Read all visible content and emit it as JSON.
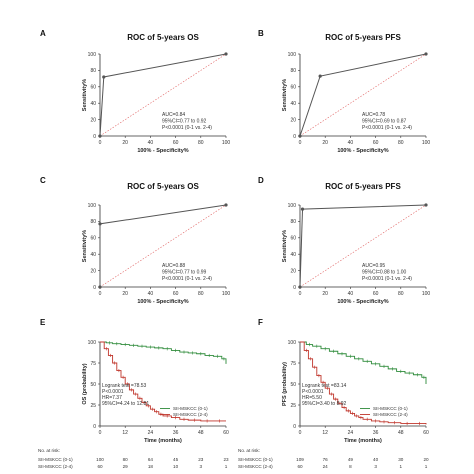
{
  "colors": {
    "roc_line": "#555555",
    "diagonal": "#e06060",
    "km_low": "#2e8b3a",
    "km_high": "#c0352b",
    "axis": "#333333"
  },
  "chart_data": [
    {
      "panel": "A",
      "type": "line",
      "title": "ROC of 5-years OS",
      "xlabel": "100% - Specificity%",
      "ylabel": "Sensitivity%",
      "xlim": [
        0,
        100
      ],
      "ylim": [
        0,
        100
      ],
      "xticks": [
        "0",
        "20",
        "40",
        "60",
        "80",
        "100"
      ],
      "yticks": [
        "0",
        "20",
        "40",
        "60",
        "80",
        "100"
      ],
      "x": [
        0,
        3,
        100
      ],
      "y": [
        0,
        72,
        100
      ],
      "annotations": [
        "AUC=0.84",
        "95%CI=0.77 to 0.92",
        "P<0.0001 (0-1 vs. 2-4)"
      ]
    },
    {
      "panel": "B",
      "type": "line",
      "title": "ROC of 5-years PFS",
      "xlabel": "100% - Specificity%",
      "ylabel": "Sensitivity%",
      "xlim": [
        0,
        100
      ],
      "ylim": [
        0,
        100
      ],
      "xticks": [
        "0",
        "20",
        "40",
        "60",
        "80",
        "100"
      ],
      "yticks": [
        "0",
        "20",
        "40",
        "60",
        "80",
        "100"
      ],
      "x": [
        0,
        16,
        100
      ],
      "y": [
        0,
        73,
        100
      ],
      "annotations": [
        "AUC=0.78",
        "95%CI=0.69 to 0.87",
        "P<0.0001 (0-1 vs. 2-4)"
      ]
    },
    {
      "panel": "C",
      "type": "line",
      "title": "ROC of 5-years OS",
      "xlabel": "100% - Specificity%",
      "ylabel": "Sensitivity%",
      "xlim": [
        0,
        100
      ],
      "ylim": [
        0,
        100
      ],
      "xticks": [
        "0",
        "20",
        "40",
        "60",
        "80",
        "100"
      ],
      "yticks": [
        "0",
        "20",
        "40",
        "60",
        "80",
        "100"
      ],
      "x": [
        0,
        0,
        100
      ],
      "y": [
        0,
        77,
        100
      ],
      "annotations": [
        "AUC=0.88",
        "95%CI=0.77 to 0.99",
        "P<0.0001 (0-1 vs. 2-4)"
      ]
    },
    {
      "panel": "D",
      "type": "line",
      "title": "ROC of 5-years PFS",
      "xlabel": "100% - Specificity%",
      "ylabel": "Sensitivity%",
      "xlim": [
        0,
        100
      ],
      "ylim": [
        0,
        100
      ],
      "xticks": [
        "0",
        "20",
        "40",
        "60",
        "80",
        "100"
      ],
      "yticks": [
        "0",
        "20",
        "40",
        "60",
        "80",
        "100"
      ],
      "x": [
        0,
        2,
        100
      ],
      "y": [
        0,
        95,
        100
      ],
      "annotations": [
        "AUC=0.95",
        "95%CI=0.88 to 1.00",
        "P<0.0001 (0-1 vs. 2-4)"
      ]
    },
    {
      "panel": "E",
      "type": "line",
      "title": "",
      "xlabel": "Time (months)",
      "ylabel": "OS (probability)",
      "xlim": [
        0,
        60
      ],
      "ylim": [
        0,
        100
      ],
      "xticks": [
        "0",
        "12",
        "24",
        "36",
        "48",
        "60"
      ],
      "yticks": [
        "0",
        "25",
        "50",
        "75",
        "100"
      ],
      "series": [
        {
          "name": "SII-MSKCC (0-1)",
          "color_key": "km_low",
          "x": [
            0,
            3,
            6,
            10,
            14,
            18,
            22,
            26,
            30,
            34,
            38,
            42,
            46,
            50,
            54,
            58,
            60
          ],
          "y": [
            100,
            99,
            98,
            97,
            96,
            95,
            94,
            93,
            92,
            90,
            88,
            87,
            86,
            84,
            83,
            80,
            74
          ]
        },
        {
          "name": "SII-MSKCC (2-4)",
          "color_key": "km_high",
          "x": [
            0,
            2,
            4,
            6,
            8,
            10,
            12,
            14,
            16,
            18,
            20,
            22,
            24,
            26,
            28,
            30,
            34,
            38,
            42,
            48,
            54,
            60
          ],
          "y": [
            100,
            92,
            84,
            75,
            66,
            58,
            50,
            43,
            38,
            33,
            28,
            24,
            20,
            17,
            14,
            12,
            10,
            8,
            7,
            6,
            6,
            6
          ]
        }
      ],
      "annotations": [
        "Logrank test =78.53",
        "P<0.0001",
        "HR=7.37",
        "95%CI=4.24 to 12.81"
      ],
      "risk_table": {
        "title": "No. at risk:",
        "rows": [
          {
            "label": "SII-MSKCC (0-1)",
            "values": [
              "100",
              "80",
              "64",
              "45",
              "23",
              "23"
            ]
          },
          {
            "label": "SII-MSKCC (2-4)",
            "values": [
              "60",
              "29",
              "18",
              "10",
              "3",
              "1"
            ]
          }
        ]
      }
    },
    {
      "panel": "F",
      "type": "line",
      "title": "",
      "xlabel": "Time (months)",
      "ylabel": "PFS (probability)",
      "xlim": [
        0,
        60
      ],
      "ylim": [
        0,
        100
      ],
      "xticks": [
        "0",
        "12",
        "24",
        "36",
        "48",
        "60"
      ],
      "yticks": [
        "0",
        "25",
        "50",
        "75",
        "100"
      ],
      "series": [
        {
          "name": "SII-MSKCC (0-1)",
          "color_key": "km_low",
          "x": [
            0,
            3,
            6,
            10,
            14,
            18,
            22,
            26,
            30,
            34,
            38,
            42,
            46,
            50,
            54,
            58,
            60
          ],
          "y": [
            100,
            97,
            95,
            92,
            89,
            86,
            83,
            80,
            77,
            74,
            71,
            68,
            65,
            63,
            61,
            58,
            50
          ]
        },
        {
          "name": "SII-MSKCC (2-4)",
          "color_key": "km_high",
          "x": [
            0,
            2,
            4,
            6,
            8,
            10,
            12,
            14,
            16,
            18,
            20,
            22,
            24,
            26,
            28,
            30,
            34,
            38,
            42,
            48,
            54,
            60
          ],
          "y": [
            100,
            90,
            80,
            70,
            60,
            52,
            45,
            38,
            32,
            27,
            22,
            18,
            15,
            12,
            10,
            8,
            6,
            5,
            4,
            3,
            3,
            2
          ]
        }
      ],
      "annotations": [
        "Logrank test =83.14",
        "P<0.0001",
        "HR=5.50",
        "95%CI=3.40 to 8.92"
      ],
      "risk_table": {
        "title": "No. at risk:",
        "rows": [
          {
            "label": "SII-MSKCC (0-1)",
            "values": [
              "109",
              "76",
              "49",
              "40",
              "30",
              "20"
            ]
          },
          {
            "label": "SII-MSKCC (2-4)",
            "values": [
              "60",
              "24",
              "8",
              "3",
              "1",
              "1"
            ]
          }
        ]
      }
    }
  ]
}
